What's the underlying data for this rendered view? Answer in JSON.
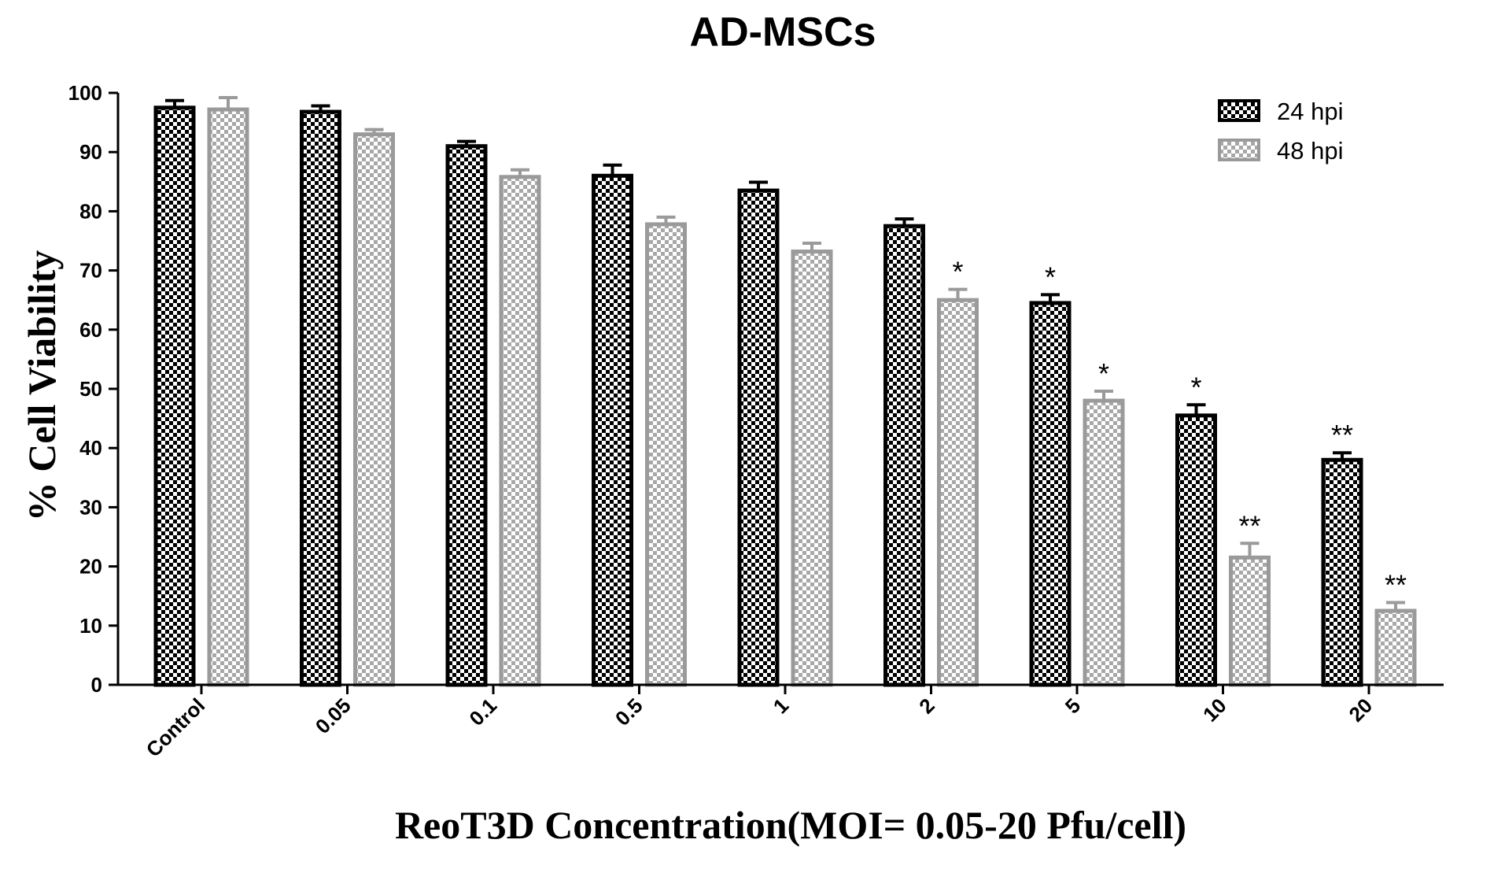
{
  "chart_data": {
    "type": "bar",
    "title": "AD-MSCs",
    "xlabel": "ReoT3D Concentration(MOI= 0.05-20 Pfu/cell)",
    "ylabel": "% Cell Viability",
    "ylim": [
      0,
      100
    ],
    "yticks": [
      0,
      10,
      20,
      30,
      40,
      50,
      60,
      70,
      80,
      90,
      100
    ],
    "categories": [
      "Control",
      "0.05",
      "0.1",
      "0.5",
      "1",
      "2",
      "5",
      "10",
      "20"
    ],
    "legend_position": "top-right",
    "series": [
      {
        "name": "24 hpi",
        "color": "#000000",
        "pattern": "dark-checker",
        "values": [
          97.5,
          96.8,
          91.0,
          86.0,
          83.5,
          77.5,
          64.5,
          45.5,
          38.0
        ],
        "errors": [
          1.2,
          1.0,
          0.8,
          1.8,
          1.4,
          1.2,
          1.4,
          1.8,
          1.2
        ],
        "significance": [
          "",
          "",
          "",
          "",
          "",
          "",
          "*",
          "*",
          "**"
        ]
      },
      {
        "name": "48 hpi",
        "color": "#9a9a9a",
        "pattern": "light-checker",
        "values": [
          97.2,
          93.0,
          85.8,
          77.8,
          73.2,
          65.0,
          48.0,
          21.5,
          12.5
        ],
        "errors": [
          2.0,
          0.8,
          1.2,
          1.2,
          1.4,
          1.8,
          1.6,
          2.4,
          1.4
        ],
        "significance": [
          "",
          "",
          "",
          "",
          "",
          "*",
          "*",
          "**",
          "**"
        ]
      }
    ]
  }
}
